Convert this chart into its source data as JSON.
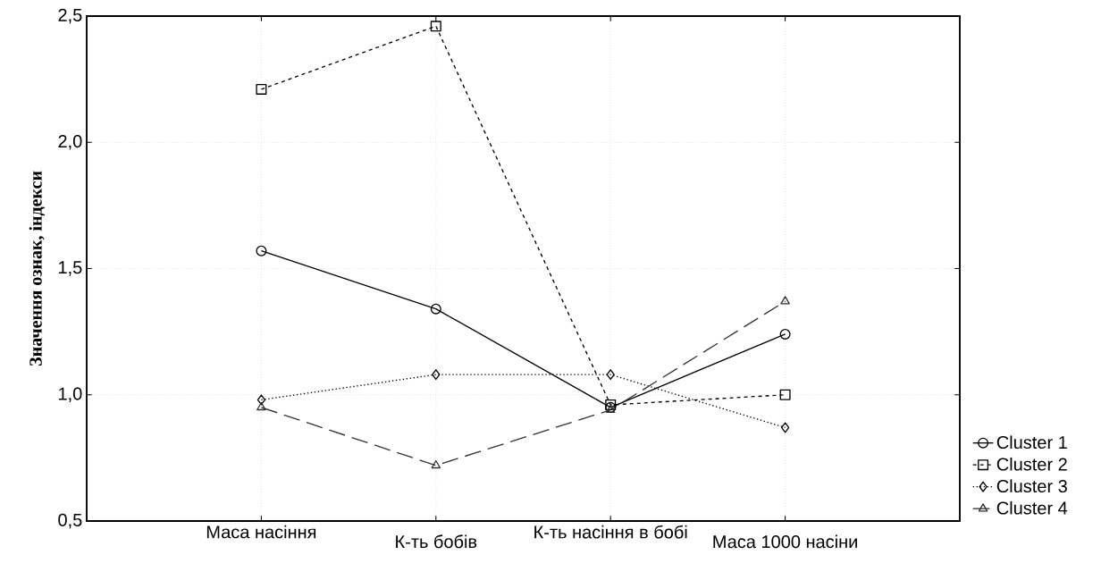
{
  "chart_data": {
    "type": "line",
    "ylabel": "Значення ознак, індекси",
    "categories": [
      "Маса насіння",
      "К-ть бобів",
      "К-ть насіння в бобі",
      "Маса 1000 насіни"
    ],
    "series": [
      {
        "name": "Cluster 1",
        "color": "#000000",
        "marker": "circle",
        "line_style": "solid",
        "values": [
          1.57,
          1.34,
          0.95,
          1.24
        ]
      },
      {
        "name": "Cluster 2",
        "color": "#000000",
        "marker": "square",
        "line_style": "dashed",
        "values": [
          2.21,
          2.46,
          0.96,
          1.0
        ]
      },
      {
        "name": "Cluster 3",
        "color": "#000000",
        "marker": "diamond",
        "line_style": "dotted",
        "values": [
          0.98,
          1.08,
          1.08,
          0.87
        ]
      },
      {
        "name": "Cluster 4",
        "color": "#333333",
        "marker": "triangle",
        "line_style": "loosely dashed",
        "values": [
          0.95,
          0.72,
          0.94,
          1.37
        ]
      }
    ],
    "ylim": [
      0.5,
      2.5
    ],
    "yticks": [
      {
        "value": 0.5,
        "label": "0,5"
      },
      {
        "value": 1.0,
        "label": "1,0"
      },
      {
        "value": 1.5,
        "label": "1,5"
      },
      {
        "value": 2.0,
        "label": "2,0"
      },
      {
        "value": 2.5,
        "label": "2,5"
      }
    ],
    "grid": true,
    "legend": "bottom right"
  }
}
